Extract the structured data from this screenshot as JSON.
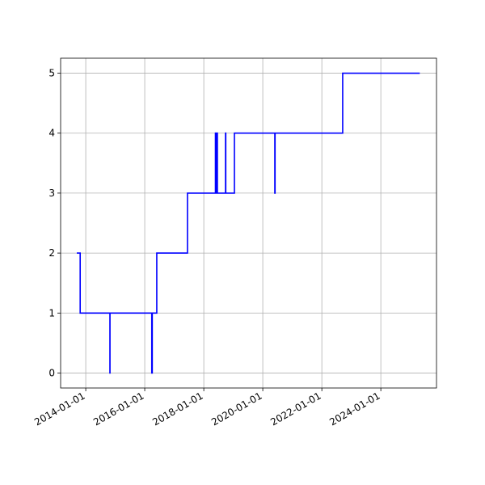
{
  "chart_data": {
    "type": "line",
    "drawstyle": "steps-post",
    "grid": true,
    "x": [
      "2013-09-12",
      "2013-10-24",
      "2014-10-27",
      "2014-10-28",
      "2016-03-28",
      "2016-04-03",
      "2016-05-29",
      "2017-06-13",
      "2018-05-25",
      "2018-05-28",
      "2018-06-05",
      "2018-06-08",
      "2018-06-15",
      "2018-06-18",
      "2018-09-27",
      "2018-09-30",
      "2019-01-15",
      "2020-05-29",
      "2020-06-01",
      "2022-09-16",
      "2025-04-27"
    ],
    "series": [
      {
        "color": "#0000ff",
        "values": [
          2,
          1,
          0,
          1,
          0,
          1,
          2,
          3,
          4,
          3,
          4,
          3,
          4,
          3,
          4,
          3,
          4,
          3,
          4,
          5,
          5
        ]
      }
    ],
    "xlim": [
      "2013-02-24",
      "2025-11-20"
    ],
    "xticks": [
      "2014-01-01",
      "2016-01-01",
      "2018-01-01",
      "2020-01-01",
      "2022-01-01",
      "2024-01-01"
    ],
    "ylim": [
      -0.25,
      5.25
    ],
    "yticks": [
      0,
      1,
      2,
      3,
      4,
      5
    ]
  }
}
